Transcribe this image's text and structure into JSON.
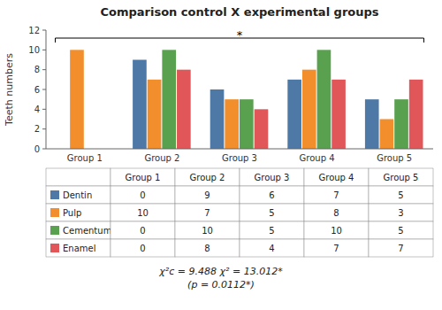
{
  "chart_data": {
    "type": "bar",
    "title": "Comparison control X experimental groups",
    "y_label": "Teeth numbers",
    "categories": [
      "Group 1",
      "Group 2",
      "Group 3",
      "Group 4",
      "Group 5"
    ],
    "series": [
      {
        "name": "Dentin",
        "values": [
          0,
          9,
          6,
          7,
          5
        ]
      },
      {
        "name": "Pulp",
        "values": [
          10,
          7,
          5,
          8,
          3
        ]
      },
      {
        "name": "Cementum",
        "values": [
          0,
          10,
          5,
          10,
          5
        ]
      },
      {
        "name": "Enamel",
        "values": [
          0,
          8,
          4,
          7,
          7
        ]
      }
    ],
    "ylim": [
      0,
      12
    ],
    "yticks": [
      0,
      2,
      4,
      6,
      8,
      10,
      12
    ],
    "grid": false,
    "annotations": [
      {
        "text": "*"
      },
      {
        "text": "χ²ᴄ = 9.488 χ² = 13.012*\n(p = 0.0112*)"
      }
    ]
  }
}
